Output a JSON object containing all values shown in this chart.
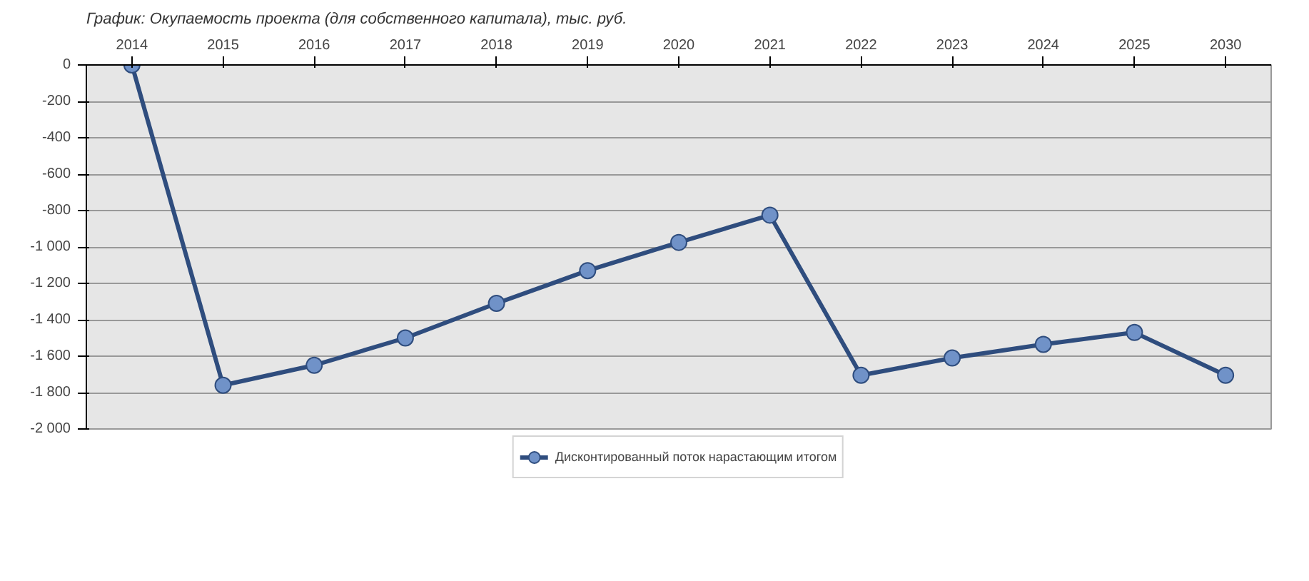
{
  "chart_data": {
    "type": "line",
    "title": "График: Окупаемость проекта (для собственного капитала), тыс. руб.",
    "categories": [
      "2014",
      "2015",
      "2016",
      "2017",
      "2018",
      "2019",
      "2020",
      "2021",
      "2022",
      "2023",
      "2024",
      "2025",
      "2030"
    ],
    "series": [
      {
        "name": "Дисконтированный поток нарастающим итогом",
        "color": "#2f4d7e",
        "values": [
          0,
          -1760,
          -1650,
          -1500,
          -1310,
          -1130,
          -975,
          -825,
          -1705,
          -1610,
          -1535,
          -1470,
          -1705
        ]
      }
    ],
    "ylim": [
      -2000,
      0
    ],
    "yticks": [
      0,
      -200,
      -400,
      -600,
      -800,
      {
        "value": -1000,
        "label": "-1 000"
      },
      {
        "value": -1200,
        "label": "-1 200"
      },
      {
        "value": -1400,
        "label": "-1 400"
      },
      {
        "value": -1600,
        "label": "-1 600"
      },
      {
        "value": -1800,
        "label": "-1 800"
      },
      {
        "value": -2000,
        "label": "-2 000"
      }
    ],
    "grid": "y",
    "legend": "bottom",
    "marker": "circle",
    "line_style": "solid"
  }
}
